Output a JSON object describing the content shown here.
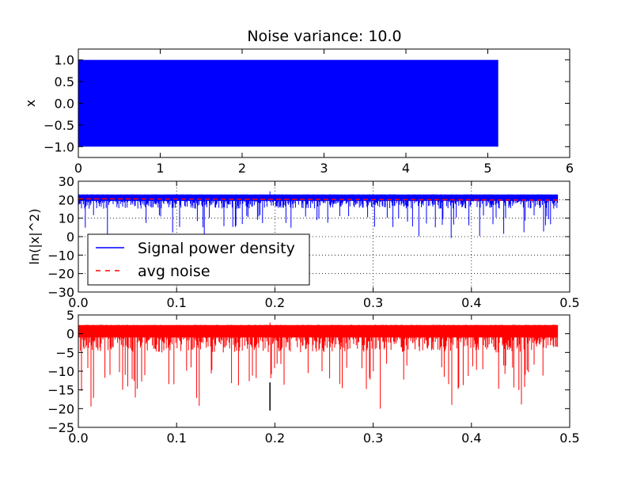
{
  "title": "Noise variance: 10.0",
  "colors": {
    "signal": "#0000ff",
    "noise_avg": "#ff0000",
    "bottom": "#ff0000",
    "frame": "#000000",
    "grid": "#000000"
  },
  "chart_data": [
    {
      "id": "top",
      "type": "line",
      "title": "Noise variance: 10.0",
      "xlabel": "",
      "ylabel": "x",
      "xlim": [
        0,
        6
      ],
      "ylim": [
        -1.25,
        1.25
      ],
      "xticks": [
        0,
        1,
        2,
        3,
        4,
        5,
        6
      ],
      "yticks": [
        -1.0,
        -0.5,
        0.0,
        0.5,
        1.0
      ],
      "xtick_labels": [
        "0",
        "1",
        "2",
        "3",
        "4",
        "5",
        "6"
      ],
      "ytick_labels": [
        "−1.0",
        "−0.5",
        "0.0",
        "0.5",
        "1.0"
      ],
      "grid": false,
      "series": [
        {
          "color": "#0000ff",
          "x_range": [
            0,
            5.12
          ],
          "y_min": -1.0,
          "y_max": 1.0,
          "description_kind": "dense oscillation filling band"
        }
      ]
    },
    {
      "id": "middle",
      "type": "line",
      "xlabel": "",
      "ylabel": "ln(|x|^2)",
      "xlim": [
        0,
        0.5
      ],
      "ylim": [
        -30,
        30
      ],
      "xticks": [
        0.0,
        0.1,
        0.2,
        0.3,
        0.4,
        0.5
      ],
      "yticks": [
        -30,
        -20,
        -10,
        0,
        10,
        20,
        30
      ],
      "xtick_labels": [
        "0.0",
        "0.1",
        "0.2",
        "0.3",
        "0.4",
        "0.5"
      ],
      "ytick_labels": [
        "−30",
        "−20",
        "−10",
        "0",
        "10",
        "20",
        "30"
      ],
      "grid": true,
      "legend": {
        "placement": "lower-left",
        "entries": [
          "Signal power density",
          "avg noise"
        ]
      },
      "series": [
        {
          "name": "Signal power density",
          "color": "#0000ff",
          "style": "solid",
          "x_range": [
            0,
            0.488
          ],
          "band_top": 22.5,
          "band_bottom": 12,
          "dip_min": -1,
          "spike_max": 24.5,
          "spike_at": 0.195
        },
        {
          "name": "avg noise",
          "color": "#ff0000",
          "style": "dashed",
          "x": [
            0,
            0.488
          ],
          "y": [
            20.5,
            19.8
          ]
        }
      ]
    },
    {
      "id": "bottom",
      "type": "line",
      "xlabel": "",
      "ylabel": "",
      "xlim": [
        0,
        0.5
      ],
      "ylim": [
        -25,
        5
      ],
      "xticks": [
        0.0,
        0.1,
        0.2,
        0.3,
        0.4,
        0.5
      ],
      "yticks": [
        -25,
        -20,
        -15,
        -10,
        -5,
        0,
        5
      ],
      "xtick_labels": [
        "0.0",
        "0.1",
        "0.2",
        "0.3",
        "0.4",
        "0.5"
      ],
      "ytick_labels": [
        "−25",
        "−20",
        "−15",
        "−10",
        "−5",
        "0",
        "5"
      ],
      "grid": false,
      "series": [
        {
          "color": "#ff0000",
          "x_range": [
            0,
            0.488
          ],
          "band_top": 2.0,
          "band_bottom": -8,
          "dip_min": -20.5,
          "spike_max": 3.0
        },
        {
          "color": "#000000",
          "x": [
            0.195,
            0.195
          ],
          "y": [
            -20.5,
            -13
          ]
        }
      ]
    }
  ]
}
